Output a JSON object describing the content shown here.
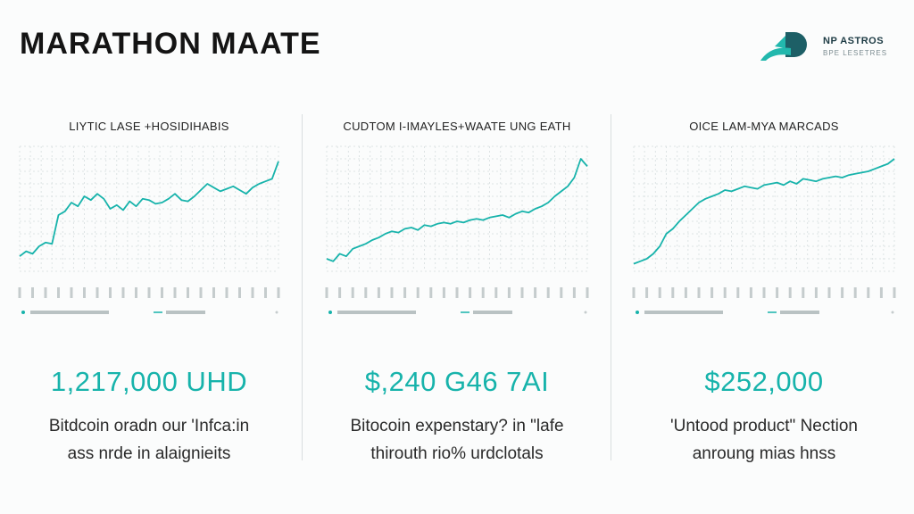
{
  "header": {
    "title": "MARATHON MAATE",
    "logo_text": "NP ASTROS",
    "logo_sub": "BPE LESETRES"
  },
  "colors": {
    "accent": "#17b3ab",
    "logo_dark": "#1d5f66",
    "logo_teal": "#22b8ad",
    "grid_dot": "#dde3e4"
  },
  "panels": [
    {
      "title": "LIYTIC LASE +HOSIDIHABIS",
      "stat": "1,217,000 UHD",
      "desc_line1": "Bitdcoin oradn our 'Infca:in",
      "desc_line2": "ass nrde in alaignieits"
    },
    {
      "title": "CUDTOM I-IMAYLES+WAATE UNG EATH",
      "stat": "$,240 G46 7AI",
      "desc_line1": "Bitocoin expenstary? in \"lafe",
      "desc_line2": "thirouth rio% urdclotals"
    },
    {
      "title": "OICE LAM-MYA MARCADS",
      "stat": "$252,000",
      "desc_line1": "'Untood product\" Nection",
      "desc_line2": "anroung mias hnss"
    }
  ],
  "chart_data": [
    {
      "type": "line",
      "title": "LIYTIC LASE +HOSIDIHABIS",
      "x": [
        0,
        1,
        2,
        3,
        4,
        5,
        6,
        7,
        8,
        9,
        10,
        11,
        12,
        13,
        14,
        15,
        16,
        17,
        18,
        19,
        20,
        21,
        22,
        23,
        24,
        25,
        26,
        27,
        28,
        29,
        30,
        31,
        32,
        33,
        34,
        35,
        36,
        37,
        38,
        39,
        40
      ],
      "series": [
        {
          "values": [
            12,
            16,
            14,
            20,
            23,
            22,
            45,
            48,
            55,
            52,
            60,
            57,
            62,
            58,
            50,
            53,
            49,
            56,
            52,
            58,
            57,
            54,
            55,
            58,
            62,
            57,
            56,
            60,
            65,
            70,
            67,
            64,
            66,
            68,
            65,
            62,
            67,
            70,
            72,
            74,
            88
          ]
        }
      ],
      "ylim": [
        0,
        100
      ],
      "legend": [
        "",
        ""
      ],
      "grid": true,
      "legend_placement": "bottom"
    },
    {
      "type": "line",
      "title": "CUDTOM I-IMAYLES+WAATE UNG EATH",
      "x": [
        0,
        1,
        2,
        3,
        4,
        5,
        6,
        7,
        8,
        9,
        10,
        11,
        12,
        13,
        14,
        15,
        16,
        17,
        18,
        19,
        20,
        21,
        22,
        23,
        24,
        25,
        26,
        27,
        28,
        29,
        30,
        31,
        32,
        33,
        34,
        35,
        36,
        37,
        38,
        39,
        40
      ],
      "series": [
        {
          "values": [
            10,
            8,
            14,
            12,
            18,
            20,
            22,
            25,
            27,
            30,
            32,
            31,
            34,
            35,
            33,
            37,
            36,
            38,
            39,
            38,
            40,
            39,
            41,
            42,
            41,
            43,
            44,
            45,
            43,
            46,
            48,
            47,
            50,
            52,
            55,
            60,
            64,
            68,
            75,
            90,
            84
          ]
        }
      ],
      "ylim": [
        0,
        100
      ],
      "legend": [
        "",
        ""
      ],
      "grid": true,
      "legend_placement": "bottom"
    },
    {
      "type": "line",
      "title": "OICE LAM-MYA MARCADS",
      "x": [
        0,
        1,
        2,
        3,
        4,
        5,
        6,
        7,
        8,
        9,
        10,
        11,
        12,
        13,
        14,
        15,
        16,
        17,
        18,
        19,
        20,
        21,
        22,
        23,
        24,
        25,
        26,
        27,
        28,
        29,
        30,
        31,
        32,
        33,
        34,
        35,
        36,
        37,
        38,
        39,
        40
      ],
      "series": [
        {
          "values": [
            6,
            8,
            10,
            14,
            20,
            30,
            34,
            40,
            45,
            50,
            55,
            58,
            60,
            62,
            65,
            64,
            66,
            68,
            67,
            66,
            69,
            70,
            71,
            69,
            72,
            70,
            74,
            73,
            72,
            74,
            75,
            76,
            75,
            77,
            78,
            79,
            80,
            82,
            84,
            86,
            90
          ]
        }
      ],
      "ylim": [
        0,
        100
      ],
      "legend": [
        "",
        ""
      ],
      "grid": true,
      "legend_placement": "bottom"
    }
  ]
}
